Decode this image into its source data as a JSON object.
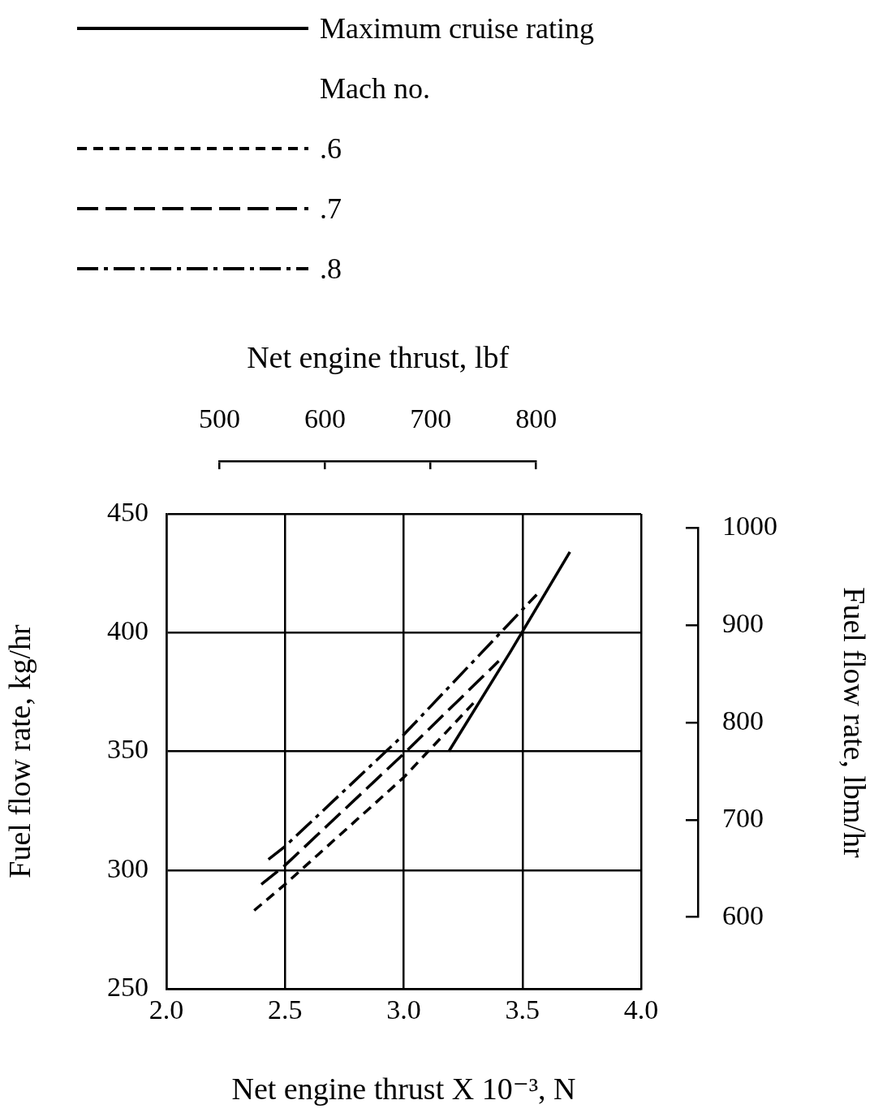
{
  "chart_data": {
    "type": "line",
    "xlabel": "Net engine thrust X 10⁻³, N",
    "ylabel": "Fuel flow rate, kg/hr",
    "x2label": "Net engine thrust, lbf",
    "y2label": "Fuel flow rate, lbm/hr",
    "legend_title": "Mach no.",
    "legend": "top",
    "grid": true,
    "xlim": [
      2.0,
      4.0
    ],
    "xticks": [
      {
        "value": 2,
        "label": "2.0"
      },
      {
        "value": 2.5,
        "label": "2.5"
      },
      {
        "value": 3,
        "label": "3.0"
      },
      {
        "value": 3.5,
        "label": "3.5"
      },
      {
        "value": 4,
        "label": "4.0"
      }
    ],
    "ylim": [
      250,
      450
    ],
    "yticks": [
      250,
      300,
      350,
      400,
      450
    ],
    "x2lim": [
      500,
      800
    ],
    "x2ticks": [
      500,
      600,
      700,
      800
    ],
    "y2lim": [
      600,
      1000
    ],
    "y2ticks": [
      600,
      700,
      800,
      900,
      1000
    ],
    "series": [
      {
        "name": "Maximum cruise rating",
        "color": "#000000",
        "line_style": "solid",
        "x": [
          3.19,
          3.45,
          3.7
        ],
        "values": [
          350,
          392,
          434
        ]
      },
      {
        "name": ".6",
        "color": "#000000",
        "line_style": "dotted",
        "x": [
          2.37,
          2.5,
          3.0,
          3.3
        ],
        "values": [
          283,
          294,
          339,
          371
        ]
      },
      {
        "name": ".7",
        "color": "#000000",
        "line_style": "dashed",
        "x": [
          2.4,
          2.5,
          3.0,
          3.4
        ],
        "values": [
          294,
          302,
          349,
          388
        ]
      },
      {
        "name": ".8",
        "color": "#000000",
        "line_style": "dashdot",
        "x": [
          2.43,
          2.5,
          3.0,
          3.56
        ],
        "values": [
          304.5,
          310,
          357,
          416
        ]
      }
    ]
  }
}
